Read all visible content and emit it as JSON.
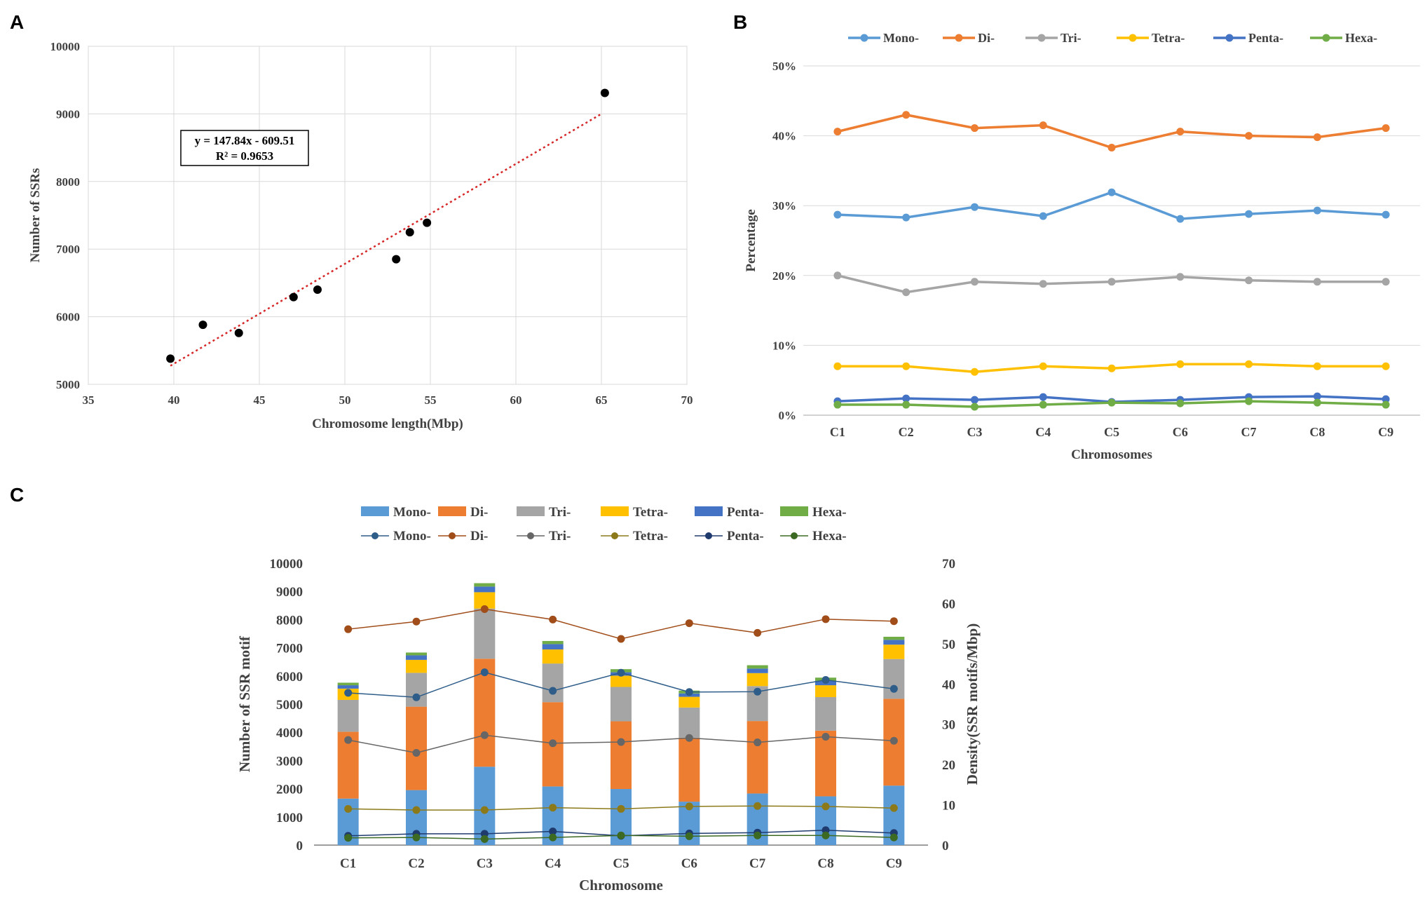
{
  "panels": {
    "a": "A",
    "b": "B",
    "c": "C"
  },
  "chart_data": [
    {
      "id": "A",
      "type": "scatter",
      "xlabel": "Chromosome  length(Mbp)",
      "ylabel": "Number  of SSRs",
      "xlim": [
        35,
        70
      ],
      "ylim": [
        5000,
        10000
      ],
      "xticks": [
        "35",
        "40",
        "45",
        "50",
        "55",
        "60",
        "65",
        "70"
      ],
      "yticks": [
        "5000",
        "6000",
        "7000",
        "8000",
        "9000",
        "10000"
      ],
      "points": [
        [
          39.8,
          5380
        ],
        [
          41.7,
          5880
        ],
        [
          43.8,
          5760
        ],
        [
          47.0,
          6290
        ],
        [
          48.4,
          6400
        ],
        [
          53.0,
          6850
        ],
        [
          53.8,
          7250
        ],
        [
          54.8,
          7390
        ],
        [
          65.2,
          9310
        ]
      ],
      "trendline": {
        "slope": 147.84,
        "intercept": -609.51,
        "x_range": [
          39.8,
          65.0
        ]
      },
      "annotation": {
        "line1": "y = 147.84x - 609.51",
        "line2": "R² = 0.9653"
      },
      "colors": {
        "point": "#000000",
        "trend": "#d62728",
        "grid": "#d9d9d9"
      }
    },
    {
      "id": "B",
      "type": "line",
      "xlabel": "Chromosomes",
      "ylabel": "Percentage",
      "categories": [
        "C1",
        "C2",
        "C3",
        "C4",
        "C5",
        "C6",
        "C7",
        "C8",
        "C9"
      ],
      "ylim": [
        0,
        50
      ],
      "yticks": [
        "0%",
        "10%",
        "20%",
        "30%",
        "40%",
        "50%"
      ],
      "series": [
        {
          "name": "Mono-",
          "color": "#5b9bd5",
          "values": [
            28.7,
            28.3,
            29.8,
            28.5,
            31.9,
            28.1,
            28.8,
            29.3,
            28.7
          ]
        },
        {
          "name": "Di-",
          "color": "#ed7d31",
          "values": [
            40.6,
            43.0,
            41.1,
            41.5,
            38.3,
            40.6,
            40.0,
            39.8,
            41.1
          ]
        },
        {
          "name": "Tri-",
          "color": "#a5a5a5",
          "values": [
            20.0,
            17.6,
            19.1,
            18.8,
            19.1,
            19.8,
            19.3,
            19.1,
            19.1
          ]
        },
        {
          "name": "Tetra-",
          "color": "#ffc000",
          "values": [
            7.0,
            7.0,
            6.2,
            7.0,
            6.7,
            7.3,
            7.3,
            7.0,
            7.0
          ]
        },
        {
          "name": "Penta-",
          "color": "#4472c4",
          "values": [
            2.0,
            2.4,
            2.2,
            2.6,
            1.9,
            2.2,
            2.6,
            2.7,
            2.3
          ]
        },
        {
          "name": "Hexa-",
          "color": "#70ad47",
          "values": [
            1.5,
            1.5,
            1.2,
            1.5,
            1.8,
            1.7,
            2.0,
            1.8,
            1.5
          ]
        }
      ]
    },
    {
      "id": "C",
      "type": "bar",
      "stacked": true,
      "xlabel": "Chromosome",
      "ylabel": "Number of SSR motif",
      "y2label": "Density(SSR motifs/Mbp)",
      "categories": [
        "C1",
        "C2",
        "C3",
        "C4",
        "C5",
        "C6",
        "C7",
        "C8",
        "C9"
      ],
      "ylim": [
        0,
        10000
      ],
      "y2lim": [
        0,
        70
      ],
      "yticks": [
        "0",
        "1000",
        "2000",
        "3000",
        "4000",
        "5000",
        "6000",
        "7000",
        "8000",
        "9000",
        "10000"
      ],
      "y2ticks": [
        "0",
        "10",
        "20",
        "30",
        "40",
        "50",
        "60",
        "70"
      ],
      "bar_series": [
        {
          "name": "Mono-",
          "color": "#5b9bd5",
          "values": [
            1650,
            1950,
            2780,
            2080,
            1990,
            1540,
            1830,
            1730,
            2110
          ]
        },
        {
          "name": "Di-",
          "color": "#ed7d31",
          "values": [
            2370,
            2960,
            3830,
            2990,
            2400,
            2270,
            2570,
            2330,
            3080
          ]
        },
        {
          "name": "Tri-",
          "color": "#a5a5a5",
          "values": [
            1130,
            1200,
            1780,
            1370,
            1220,
            1070,
            1240,
            1190,
            1410
          ]
        },
        {
          "name": "Tetra-",
          "color": "#ffc000",
          "values": [
            400,
            460,
            580,
            500,
            400,
            380,
            460,
            420,
            510
          ]
        },
        {
          "name": "Penta-",
          "color": "#4472c4",
          "values": [
            120,
            160,
            200,
            190,
            120,
            120,
            160,
            160,
            170
          ]
        },
        {
          "name": "Hexa-",
          "color": "#70ad47",
          "values": [
            90,
            100,
            120,
            110,
            110,
            100,
            120,
            110,
            110
          ]
        }
      ],
      "line_series": [
        {
          "name": "Mono-",
          "color": "#2e5d8a",
          "values": [
            37.8,
            36.7,
            42.9,
            38.3,
            42.8,
            38.0,
            38.1,
            41.0,
            38.8
          ]
        },
        {
          "name": "Di-",
          "color": "#a04d1a",
          "values": [
            53.6,
            55.5,
            58.6,
            56.0,
            51.2,
            55.1,
            52.7,
            56.1,
            55.6
          ]
        },
        {
          "name": "Tri-",
          "color": "#666666",
          "values": [
            26.1,
            22.9,
            27.3,
            25.3,
            25.6,
            26.6,
            25.5,
            26.9,
            25.9
          ]
        },
        {
          "name": "Tetra-",
          "color": "#8c7a1a",
          "values": [
            9.0,
            8.7,
            8.7,
            9.3,
            9.0,
            9.6,
            9.7,
            9.6,
            9.2
          ]
        },
        {
          "name": "Penta-",
          "color": "#1f3b6e",
          "values": [
            2.3,
            2.8,
            2.8,
            3.4,
            2.3,
            2.9,
            3.1,
            3.7,
            3.0
          ]
        },
        {
          "name": "Hexa-",
          "color": "#3d6a22",
          "values": [
            1.8,
            1.9,
            1.5,
            1.9,
            2.4,
            2.2,
            2.4,
            2.4,
            1.9
          ]
        }
      ]
    }
  ]
}
